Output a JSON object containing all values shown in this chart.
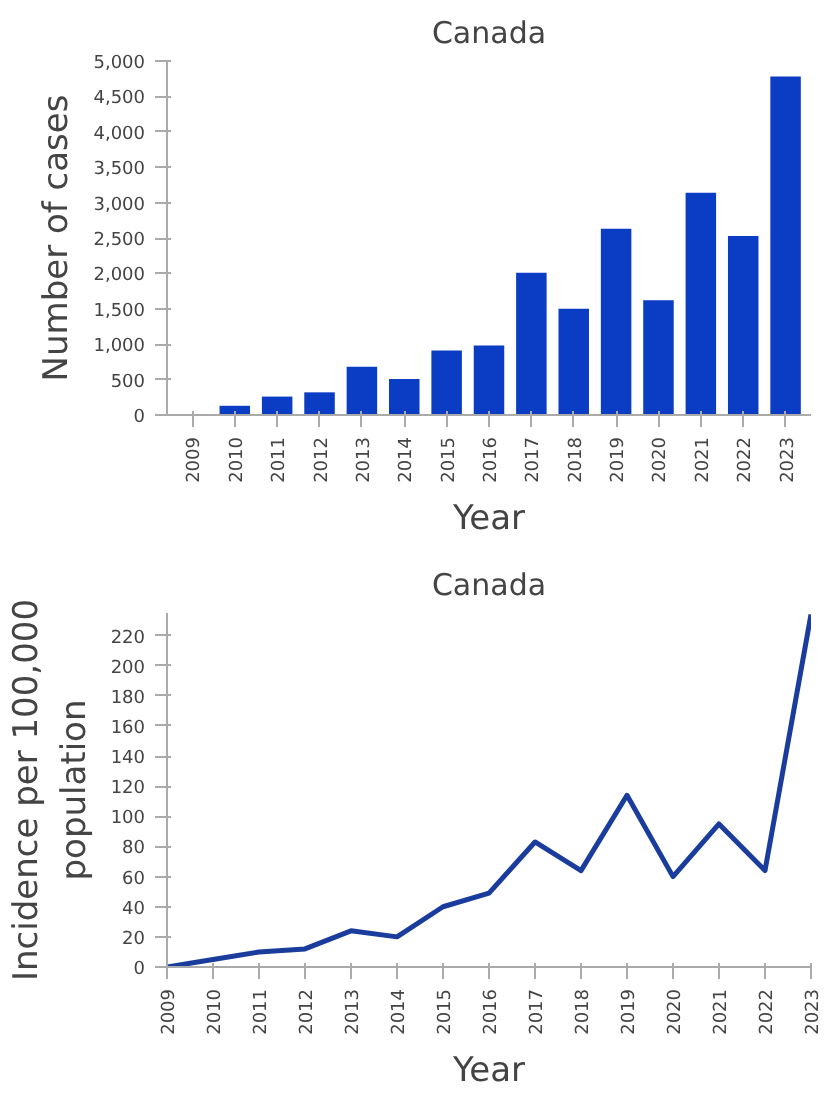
{
  "chart_data": [
    {
      "type": "bar",
      "title": "Canada",
      "xlabel": "Year",
      "ylabel": "Number of cases",
      "categories": [
        "2009",
        "2010",
        "2011",
        "2012",
        "2013",
        "2014",
        "2015",
        "2016",
        "2017",
        "2018",
        "2019",
        "2020",
        "2021",
        "2022",
        "2023"
      ],
      "values": [
        0,
        130,
        260,
        320,
        680,
        510,
        910,
        980,
        2010,
        1500,
        2630,
        1620,
        3140,
        2530,
        4780
      ],
      "color": "#0a3cc4",
      "ylim": [
        0,
        5000
      ],
      "yticks": [
        0,
        500,
        {
          "value": 1000,
          "label": "1,000"
        },
        {
          "value": 1500,
          "label": "1,500"
        },
        {
          "value": 2000,
          "label": "2,000"
        },
        {
          "value": 2500,
          "label": "2,500"
        },
        {
          "value": 3000,
          "label": "3,000"
        },
        {
          "value": 3500,
          "label": "3,500"
        },
        {
          "value": 4000,
          "label": "4,000"
        },
        {
          "value": 4500,
          "label": "4,500"
        },
        {
          "value": 5000,
          "label": "5,000"
        }
      ],
      "grid": false
    },
    {
      "type": "line",
      "title": "Canada",
      "xlabel": "Year",
      "ylabel": "Incidence per 100,000\npopulation",
      "categories": [
        "2009",
        "2010",
        "2011",
        "2012",
        "2013",
        "2014",
        "2015",
        "2016",
        "2017",
        "2018",
        "2019",
        "2020",
        "2021",
        "2022",
        "2023"
      ],
      "values": [
        0,
        5,
        10,
        12,
        24,
        20,
        40,
        49,
        83,
        64,
        114,
        60,
        95,
        64,
        234
      ],
      "color": "#1a3c9c",
      "ylim": [
        0,
        235
      ],
      "yticks": [
        0,
        20,
        40,
        60,
        80,
        100,
        120,
        140,
        160,
        180,
        200,
        220
      ],
      "grid": false,
      "marker": "none",
      "line_style": "solid"
    }
  ]
}
